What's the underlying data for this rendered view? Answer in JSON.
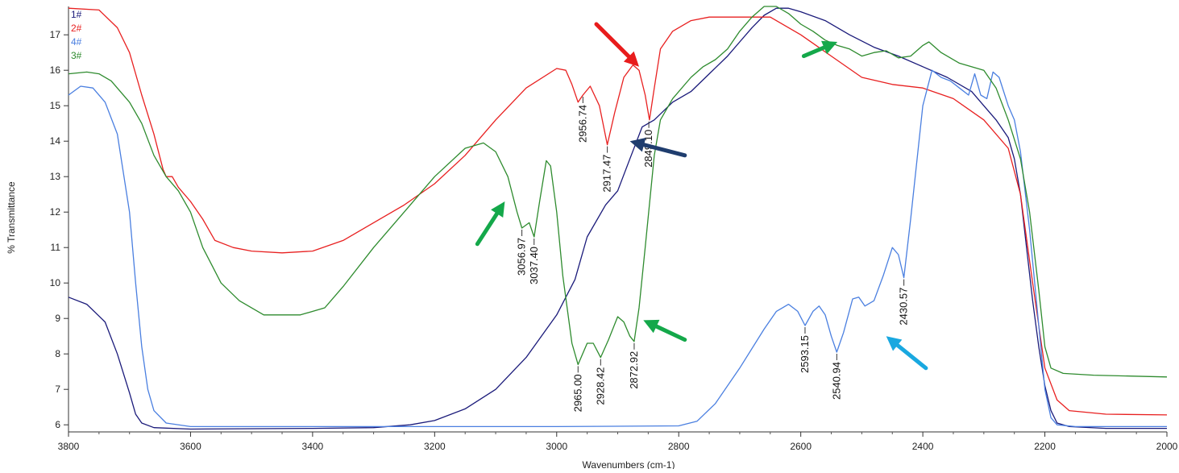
{
  "chart_data": {
    "type": "line",
    "title": "",
    "xlabel": "Wavenumbers (cm-1)",
    "ylabel": "% Transmittance",
    "xlim": [
      3800,
      2000
    ],
    "ylim": [
      5.8,
      17.8
    ],
    "x_reversed": true,
    "x_ticks": [
      3800,
      3600,
      3400,
      3200,
      3000,
      2800,
      2600,
      2400,
      2200,
      2000
    ],
    "y_ticks": [
      6,
      7,
      8,
      9,
      10,
      11,
      12,
      13,
      14,
      15,
      16,
      17
    ],
    "grid": false,
    "legend_position": "top-left",
    "series": [
      {
        "name": "1#",
        "color": "#1a1a7a",
        "points": [
          [
            3800,
            9.6
          ],
          [
            3770,
            9.4
          ],
          [
            3740,
            8.9
          ],
          [
            3720,
            8.0
          ],
          [
            3700,
            6.9
          ],
          [
            3690,
            6.3
          ],
          [
            3680,
            6.05
          ],
          [
            3660,
            5.92
          ],
          [
            3600,
            5.88
          ],
          [
            3400,
            5.9
          ],
          [
            3300,
            5.92
          ],
          [
            3240,
            6.0
          ],
          [
            3200,
            6.12
          ],
          [
            3150,
            6.45
          ],
          [
            3100,
            7.0
          ],
          [
            3050,
            7.9
          ],
          [
            3000,
            9.1
          ],
          [
            2970,
            10.1
          ],
          [
            2950,
            11.3
          ],
          [
            2920,
            12.2
          ],
          [
            2900,
            12.6
          ],
          [
            2880,
            13.5
          ],
          [
            2860,
            14.4
          ],
          [
            2840,
            14.6
          ],
          [
            2810,
            15.1
          ],
          [
            2780,
            15.4
          ],
          [
            2750,
            15.9
          ],
          [
            2720,
            16.4
          ],
          [
            2700,
            16.8
          ],
          [
            2680,
            17.2
          ],
          [
            2660,
            17.55
          ],
          [
            2640,
            17.75
          ],
          [
            2620,
            17.75
          ],
          [
            2600,
            17.65
          ],
          [
            2560,
            17.4
          ],
          [
            2520,
            17.0
          ],
          [
            2480,
            16.65
          ],
          [
            2440,
            16.4
          ],
          [
            2400,
            16.1
          ],
          [
            2360,
            15.8
          ],
          [
            2320,
            15.4
          ],
          [
            2300,
            15.0
          ],
          [
            2280,
            14.6
          ],
          [
            2260,
            14.1
          ],
          [
            2250,
            13.5
          ],
          [
            2240,
            12.5
          ],
          [
            2230,
            11.0
          ],
          [
            2220,
            9.5
          ],
          [
            2210,
            8.2
          ],
          [
            2200,
            7.1
          ],
          [
            2190,
            6.4
          ],
          [
            2180,
            6.05
          ],
          [
            2160,
            5.95
          ],
          [
            2100,
            5.9
          ],
          [
            2000,
            5.9
          ]
        ]
      },
      {
        "name": "2#",
        "color": "#e82020",
        "points": [
          [
            3800,
            17.75
          ],
          [
            3750,
            17.7
          ],
          [
            3720,
            17.2
          ],
          [
            3700,
            16.5
          ],
          [
            3680,
            15.3
          ],
          [
            3660,
            14.2
          ],
          [
            3645,
            13.2
          ],
          [
            3640,
            13.0
          ],
          [
            3630,
            13.0
          ],
          [
            3620,
            12.7
          ],
          [
            3600,
            12.3
          ],
          [
            3580,
            11.8
          ],
          [
            3560,
            11.2
          ],
          [
            3530,
            11.0
          ],
          [
            3500,
            10.9
          ],
          [
            3450,
            10.85
          ],
          [
            3400,
            10.9
          ],
          [
            3350,
            11.2
          ],
          [
            3300,
            11.7
          ],
          [
            3250,
            12.2
          ],
          [
            3200,
            12.8
          ],
          [
            3150,
            13.6
          ],
          [
            3100,
            14.6
          ],
          [
            3050,
            15.5
          ],
          [
            3000,
            16.05
          ],
          [
            2985,
            16.0
          ],
          [
            2975,
            15.6
          ],
          [
            2965,
            15.1
          ],
          [
            2957,
            15.3
          ],
          [
            2945,
            15.55
          ],
          [
            2930,
            15.0
          ],
          [
            2917,
            13.9
          ],
          [
            2905,
            14.8
          ],
          [
            2890,
            15.8
          ],
          [
            2875,
            16.15
          ],
          [
            2865,
            16.0
          ],
          [
            2855,
            15.3
          ],
          [
            2848,
            14.6
          ],
          [
            2840,
            15.5
          ],
          [
            2830,
            16.6
          ],
          [
            2810,
            17.1
          ],
          [
            2780,
            17.4
          ],
          [
            2750,
            17.5
          ],
          [
            2700,
            17.5
          ],
          [
            2650,
            17.5
          ],
          [
            2600,
            17.0
          ],
          [
            2550,
            16.4
          ],
          [
            2500,
            15.8
          ],
          [
            2450,
            15.6
          ],
          [
            2400,
            15.5
          ],
          [
            2350,
            15.2
          ],
          [
            2300,
            14.6
          ],
          [
            2260,
            13.8
          ],
          [
            2240,
            12.5
          ],
          [
            2220,
            10.0
          ],
          [
            2200,
            7.6
          ],
          [
            2180,
            6.7
          ],
          [
            2160,
            6.4
          ],
          [
            2100,
            6.3
          ],
          [
            2000,
            6.28
          ]
        ]
      },
      {
        "name": "4#",
        "color": "#4a7fe0",
        "points": [
          [
            3800,
            15.3
          ],
          [
            3780,
            15.55
          ],
          [
            3760,
            15.5
          ],
          [
            3740,
            15.1
          ],
          [
            3720,
            14.2
          ],
          [
            3700,
            12.0
          ],
          [
            3690,
            10.0
          ],
          [
            3680,
            8.2
          ],
          [
            3670,
            7.0
          ],
          [
            3660,
            6.4
          ],
          [
            3640,
            6.05
          ],
          [
            3600,
            5.95
          ],
          [
            3400,
            5.95
          ],
          [
            3200,
            5.95
          ],
          [
            3000,
            5.95
          ],
          [
            2800,
            5.97
          ],
          [
            2770,
            6.1
          ],
          [
            2740,
            6.6
          ],
          [
            2700,
            7.6
          ],
          [
            2660,
            8.7
          ],
          [
            2640,
            9.2
          ],
          [
            2620,
            9.4
          ],
          [
            2605,
            9.2
          ],
          [
            2593,
            8.8
          ],
          [
            2580,
            9.2
          ],
          [
            2570,
            9.35
          ],
          [
            2560,
            9.1
          ],
          [
            2550,
            8.5
          ],
          [
            2541,
            8.05
          ],
          [
            2530,
            8.6
          ],
          [
            2515,
            9.55
          ],
          [
            2505,
            9.6
          ],
          [
            2495,
            9.35
          ],
          [
            2480,
            9.5
          ],
          [
            2465,
            10.2
          ],
          [
            2450,
            11.0
          ],
          [
            2440,
            10.8
          ],
          [
            2431,
            10.15
          ],
          [
            2420,
            11.8
          ],
          [
            2400,
            15.0
          ],
          [
            2385,
            16.0
          ],
          [
            2370,
            15.8
          ],
          [
            2355,
            15.7
          ],
          [
            2340,
            15.5
          ],
          [
            2325,
            15.3
          ],
          [
            2315,
            15.9
          ],
          [
            2305,
            15.3
          ],
          [
            2295,
            15.2
          ],
          [
            2285,
            15.95
          ],
          [
            2275,
            15.8
          ],
          [
            2260,
            15.0
          ],
          [
            2250,
            14.6
          ],
          [
            2240,
            13.7
          ],
          [
            2225,
            11.5
          ],
          [
            2210,
            8.8
          ],
          [
            2200,
            7.0
          ],
          [
            2190,
            6.2
          ],
          [
            2180,
            6.0
          ],
          [
            2150,
            5.95
          ],
          [
            2000,
            5.95
          ]
        ]
      },
      {
        "name": "3#",
        "color": "#2e8b2e",
        "points": [
          [
            3800,
            15.9
          ],
          [
            3770,
            15.95
          ],
          [
            3750,
            15.9
          ],
          [
            3730,
            15.7
          ],
          [
            3700,
            15.1
          ],
          [
            3680,
            14.5
          ],
          [
            3660,
            13.6
          ],
          [
            3640,
            13.0
          ],
          [
            3620,
            12.6
          ],
          [
            3600,
            12.0
          ],
          [
            3580,
            11.0
          ],
          [
            3550,
            10.0
          ],
          [
            3520,
            9.5
          ],
          [
            3480,
            9.1
          ],
          [
            3450,
            9.1
          ],
          [
            3420,
            9.1
          ],
          [
            3380,
            9.3
          ],
          [
            3350,
            9.9
          ],
          [
            3300,
            11.0
          ],
          [
            3250,
            12.0
          ],
          [
            3200,
            13.0
          ],
          [
            3150,
            13.8
          ],
          [
            3120,
            13.95
          ],
          [
            3100,
            13.7
          ],
          [
            3080,
            13.0
          ],
          [
            3065,
            12.0
          ],
          [
            3057,
            11.55
          ],
          [
            3045,
            11.7
          ],
          [
            3037,
            11.3
          ],
          [
            3028,
            12.3
          ],
          [
            3017,
            13.45
          ],
          [
            3010,
            13.3
          ],
          [
            3000,
            12.0
          ],
          [
            2990,
            10.2
          ],
          [
            2975,
            8.3
          ],
          [
            2965,
            7.7
          ],
          [
            2950,
            8.3
          ],
          [
            2940,
            8.3
          ],
          [
            2928,
            7.9
          ],
          [
            2915,
            8.4
          ],
          [
            2900,
            9.05
          ],
          [
            2890,
            8.9
          ],
          [
            2880,
            8.5
          ],
          [
            2873,
            8.35
          ],
          [
            2865,
            9.3
          ],
          [
            2855,
            11.0
          ],
          [
            2840,
            13.6
          ],
          [
            2830,
            14.6
          ],
          [
            2810,
            15.2
          ],
          [
            2780,
            15.8
          ],
          [
            2760,
            16.1
          ],
          [
            2740,
            16.3
          ],
          [
            2720,
            16.6
          ],
          [
            2700,
            17.1
          ],
          [
            2680,
            17.5
          ],
          [
            2660,
            17.8
          ],
          [
            2640,
            17.8
          ],
          [
            2620,
            17.6
          ],
          [
            2600,
            17.3
          ],
          [
            2580,
            17.1
          ],
          [
            2560,
            16.85
          ],
          [
            2540,
            16.7
          ],
          [
            2520,
            16.6
          ],
          [
            2500,
            16.4
          ],
          [
            2480,
            16.5
          ],
          [
            2460,
            16.55
          ],
          [
            2440,
            16.35
          ],
          [
            2420,
            16.4
          ],
          [
            2400,
            16.7
          ],
          [
            2390,
            16.8
          ],
          [
            2370,
            16.5
          ],
          [
            2340,
            16.2
          ],
          [
            2300,
            16.0
          ],
          [
            2280,
            15.5
          ],
          [
            2260,
            14.6
          ],
          [
            2240,
            13.5
          ],
          [
            2225,
            12.0
          ],
          [
            2210,
            9.8
          ],
          [
            2200,
            8.2
          ],
          [
            2190,
            7.6
          ],
          [
            2170,
            7.45
          ],
          [
            2120,
            7.4
          ],
          [
            2000,
            7.35
          ]
        ]
      }
    ],
    "peak_labels": [
      {
        "text": "2956.74",
        "x": 2957,
        "y": 15.3
      },
      {
        "text": "2917.47",
        "x": 2917,
        "y": 13.9
      },
      {
        "text": "2849.10",
        "x": 2849,
        "y": 14.6
      },
      {
        "text": "3056.97",
        "x": 3057,
        "y": 11.55
      },
      {
        "text": "3037.40",
        "x": 3037,
        "y": 11.3
      },
      {
        "text": "2965.00",
        "x": 2965,
        "y": 7.7
      },
      {
        "text": "2928.42",
        "x": 2928,
        "y": 7.9
      },
      {
        "text": "2872.92",
        "x": 2873,
        "y": 8.35
      },
      {
        "text": "2593.15",
        "x": 2593,
        "y": 8.8
      },
      {
        "text": "2540.94",
        "x": 2541,
        "y": 8.05
      },
      {
        "text": "2430.57",
        "x": 2431,
        "y": 10.15
      }
    ],
    "arrows": [
      {
        "color": "#e81c1c",
        "from": [
          2935,
          17.3
        ],
        "to": [
          2865,
          16.1
        ]
      },
      {
        "color": "#1f3d6e",
        "from": [
          2790,
          13.6
        ],
        "to": [
          2880,
          14.0
        ]
      },
      {
        "color": "#14a84a",
        "from": [
          3130,
          11.1
        ],
        "to": [
          3085,
          12.3
        ]
      },
      {
        "color": "#14a84a",
        "from": [
          2790,
          8.4
        ],
        "to": [
          2858,
          8.95
        ]
      },
      {
        "color": "#14a84a",
        "from": [
          2595,
          16.4
        ],
        "to": [
          2540,
          16.8
        ]
      },
      {
        "color": "#19a8e0",
        "from": [
          2395,
          7.6
        ],
        "to": [
          2460,
          8.5
        ]
      }
    ]
  }
}
